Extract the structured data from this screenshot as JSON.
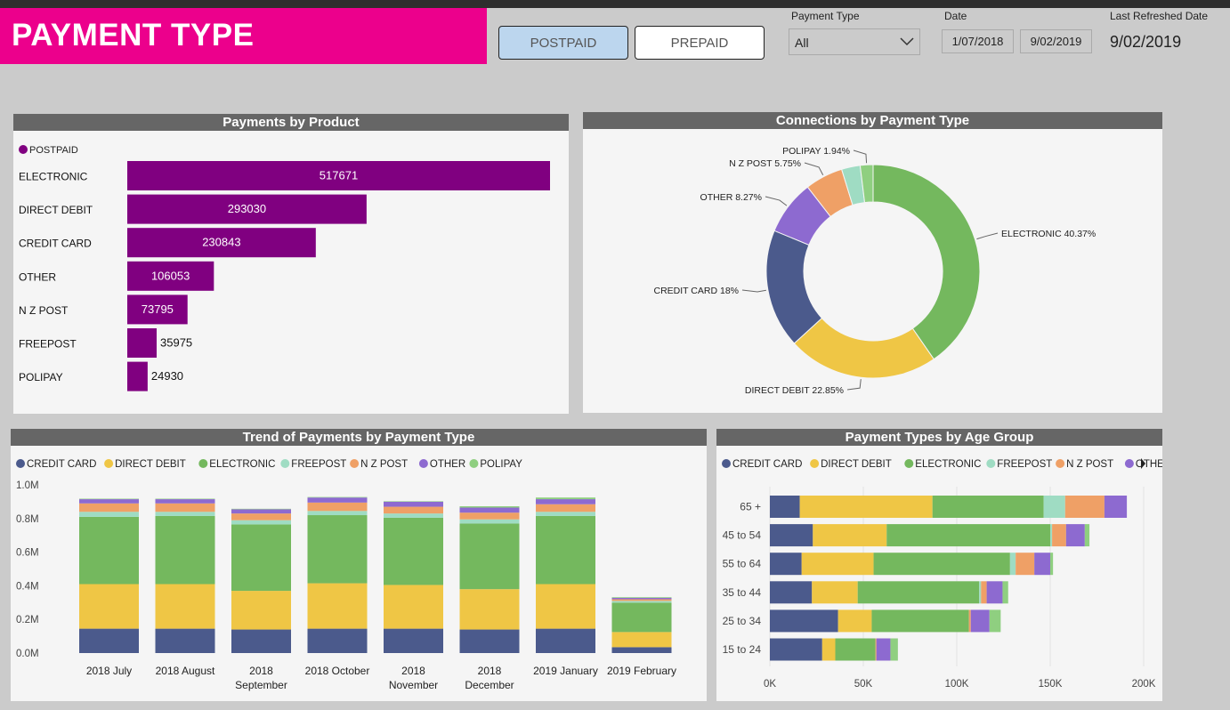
{
  "header": {
    "title": "PAYMENT TYPE",
    "postpaid_label": "POSTPAID",
    "prepaid_label": "PREPAID",
    "payment_type_label": "Payment Type",
    "payment_type_value": "All",
    "date_label": "Date",
    "date_from": "1/07/2018",
    "date_to": "9/02/2019",
    "refresh_label": "Last Refreshed Date",
    "refresh_value": "9/02/2019"
  },
  "colors": {
    "brand": "#ec008c",
    "postpaid": "#800080",
    "credit_card": "#4b5a8c",
    "direct_debit": "#efc645",
    "electronic": "#74b85e",
    "freepost": "#9fdcc3",
    "nzpost": "#efa066",
    "other": "#8d6ad0",
    "polipay": "#8fcf80"
  },
  "chart_data": [
    {
      "id": "payments_by_product",
      "type": "bar",
      "title": "Payments by Product",
      "legend": [
        "POSTPAID"
      ],
      "categories": [
        "ELECTRONIC",
        "DIRECT DEBIT",
        "CREDIT CARD",
        "OTHER",
        "N Z POST",
        "FREEPOST",
        "POLIPAY"
      ],
      "values": [
        517671,
        293030,
        230843,
        106053,
        73795,
        35975,
        24930
      ],
      "value_labels": [
        "517671",
        "293030",
        "230843",
        "106053",
        "73795",
        "35975",
        "24930"
      ]
    },
    {
      "id": "connections_by_payment_type",
      "type": "pie",
      "title": "Connections by Payment Type",
      "slices": [
        {
          "key": "electronic",
          "label": "ELECTRONIC 40.37%",
          "value": 40.37
        },
        {
          "key": "direct_debit",
          "label": "DIRECT DEBIT 22.85%",
          "value": 22.85
        },
        {
          "key": "credit_card",
          "label": "CREDIT CARD 18%",
          "value": 18.0
        },
        {
          "key": "other",
          "label": "OTHER 8.27%",
          "value": 8.27
        },
        {
          "key": "nzpost",
          "label": "N Z POST 5.75%",
          "value": 5.75
        },
        {
          "key": "freepost",
          "label": "",
          "value": 2.82
        },
        {
          "key": "polipay",
          "label": "POLIPAY 1.94%",
          "value": 1.94
        }
      ]
    },
    {
      "id": "trend_of_payments",
      "type": "bar",
      "stacked": true,
      "title": "Trend of Payments by Payment Type",
      "legend": [
        "CREDIT CARD",
        "DIRECT DEBIT",
        "ELECTRONIC",
        "FREEPOST",
        "N Z POST",
        "OTHER",
        "POLIPAY"
      ],
      "categories": [
        "2018 July",
        "2018 August",
        "2018|September",
        "2018 October",
        "2018|November",
        "2018|December",
        "2019 January",
        "2019 February"
      ],
      "y_ticks": [
        "0.0M",
        "0.2M",
        "0.4M",
        "0.6M",
        "0.8M",
        "1.0M"
      ],
      "ylim": [
        0,
        1.0
      ],
      "series": [
        {
          "key": "credit_card",
          "name": "CREDIT CARD",
          "values": [
            0.145,
            0.145,
            0.14,
            0.145,
            0.145,
            0.14,
            0.145,
            0.035
          ]
        },
        {
          "key": "direct_debit",
          "name": "DIRECT DEBIT",
          "values": [
            0.265,
            0.265,
            0.23,
            0.27,
            0.26,
            0.24,
            0.265,
            0.09
          ]
        },
        {
          "key": "electronic",
          "name": "ELECTRONIC",
          "values": [
            0.4,
            0.405,
            0.395,
            0.405,
            0.4,
            0.39,
            0.405,
            0.175
          ]
        },
        {
          "key": "freepost",
          "name": "FREEPOST",
          "values": [
            0.03,
            0.025,
            0.025,
            0.025,
            0.025,
            0.025,
            0.025,
            0.01
          ]
        },
        {
          "key": "nzpost",
          "name": "N Z POST",
          "values": [
            0.05,
            0.05,
            0.04,
            0.05,
            0.04,
            0.04,
            0.045,
            0.01
          ]
        },
        {
          "key": "other",
          "name": "OTHER",
          "values": [
            0.025,
            0.025,
            0.025,
            0.03,
            0.03,
            0.03,
            0.03,
            0.008
          ]
        },
        {
          "key": "polipay",
          "name": "POLIPAY",
          "values": [
            0.003,
            0.003,
            0.003,
            0.003,
            0.003,
            0.008,
            0.01,
            0.004
          ]
        }
      ]
    },
    {
      "id": "payment_types_by_age_group",
      "type": "bar",
      "stacked": true,
      "horizontal": true,
      "title": "Payment Types by Age Group",
      "legend": [
        "CREDIT CARD",
        "DIRECT DEBIT",
        "ELECTRONIC",
        "FREEPOST",
        "N Z POST",
        "OTHER"
      ],
      "categories": [
        "65 +",
        "45 to 54",
        "55 to 64",
        "35 to 44",
        "25 to 34",
        "15 to 24"
      ],
      "x_ticks": [
        "0K",
        "50K",
        "100K",
        "150K",
        "200K"
      ],
      "xlim": [
        0,
        200000
      ],
      "series": [
        {
          "key": "credit_card",
          "name": "CREDIT CARD",
          "values": [
            16000,
            23000,
            17000,
            22500,
            36500,
            28000
          ]
        },
        {
          "key": "direct_debit",
          "name": "DIRECT DEBIT",
          "values": [
            71000,
            39500,
            38500,
            24500,
            18000,
            7000
          ]
        },
        {
          "key": "electronic",
          "name": "ELECTRONIC",
          "values": [
            59500,
            87500,
            73000,
            65000,
            52000,
            21500
          ]
        },
        {
          "key": "freepost",
          "name": "FREEPOST",
          "values": [
            11500,
            1000,
            3000,
            1000,
            0,
            0
          ]
        },
        {
          "key": "nzpost",
          "name": "N Z POST",
          "values": [
            21000,
            7500,
            10000,
            3000,
            1000,
            500
          ]
        },
        {
          "key": "other",
          "name": "OTHER",
          "values": [
            12000,
            10000,
            8500,
            8500,
            10000,
            7500
          ]
        },
        {
          "key": "polipay",
          "name": "POLIPAY",
          "values": [
            0,
            2500,
            1500,
            3000,
            6000,
            4000
          ]
        }
      ]
    }
  ]
}
